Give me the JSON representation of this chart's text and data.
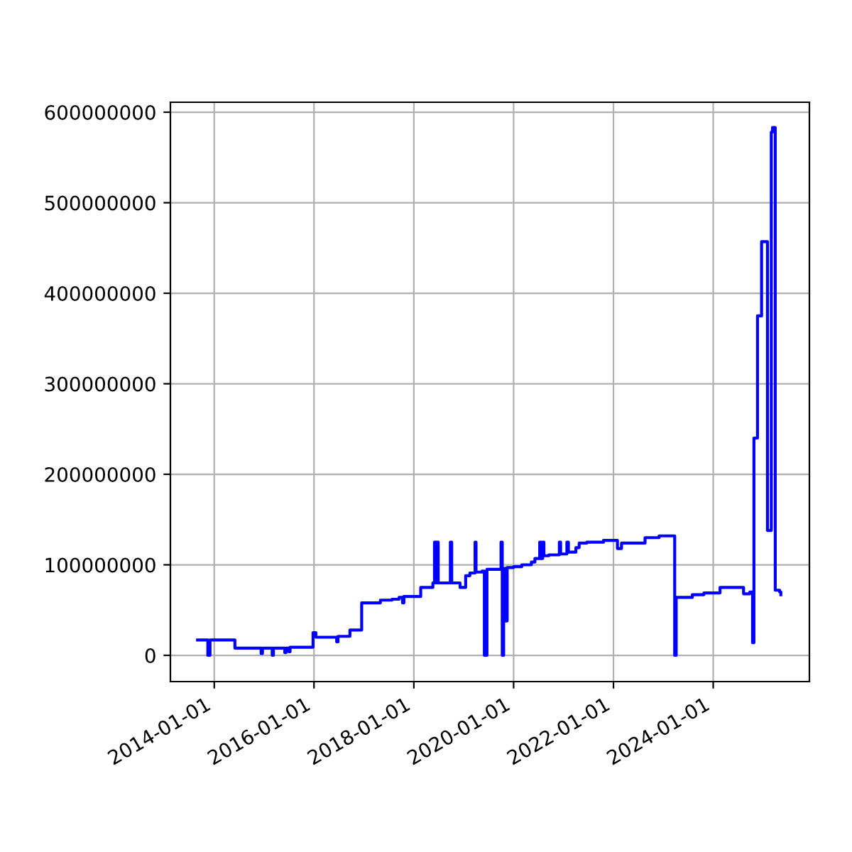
{
  "chart_data": {
    "type": "step",
    "color": "#0000ff",
    "grid": true,
    "x": [
      "2013-09-01",
      "2013-11-15",
      "2013-12-01",
      "2014-06-01",
      "2014-12-10",
      "2014-12-20",
      "2015-03-01",
      "2015-03-10",
      "2015-06-01",
      "2015-06-10",
      "2015-07-01",
      "2015-07-10",
      "2015-12-25",
      "2016-01-15",
      "2016-06-15",
      "2016-06-25",
      "2016-09-20",
      "2016-12-15",
      "2017-05-01",
      "2017-07-25",
      "2017-09-15",
      "2017-10-10",
      "2017-10-20",
      "2018-02-20",
      "2018-05-20",
      "2018-06-01",
      "2018-06-05",
      "2018-06-10",
      "2018-06-15",
      "2018-06-20",
      "2018-06-28",
      "2018-09-25",
      "2018-10-05",
      "2018-12-05",
      "2019-01-15",
      "2019-02-15",
      "2019-03-25",
      "2019-04-01",
      "2019-05-15",
      "2019-06-01",
      "2019-06-20",
      "2019-10-01",
      "2019-10-10",
      "2019-10-20",
      "2019-11-05",
      "2019-11-15",
      "2020-01-01",
      "2020-03-01",
      "2020-05-10",
      "2020-06-05",
      "2020-07-10",
      "2020-07-20",
      "2020-08-01",
      "2020-08-10",
      "2020-09-15",
      "2020-12-01",
      "2020-12-10",
      "2021-01-25",
      "2021-02-05",
      "2021-04-01",
      "2021-04-25",
      "2021-06-20",
      "2021-10-20",
      "2022-01-30",
      "2022-03-01",
      "2022-08-20",
      "2022-12-01",
      "2023-03-25",
      "2023-04-05",
      "2023-08-01",
      "2023-10-25",
      "2024-02-20",
      "2024-08-10",
      "2024-09-25",
      "2024-10-15",
      "2024-10-25",
      "2024-11-20",
      "2024-12-20",
      "2025-02-01",
      "2025-03-01",
      "2025-03-10",
      "2025-03-30",
      "2025-05-01",
      "2025-05-10"
    ],
    "values": [
      17000000,
      0,
      17000000,
      8000000,
      2000000,
      8000000,
      0,
      8000000,
      3000000,
      8000000,
      4000000,
      9000000,
      25000000,
      20000000,
      15000000,
      21000000,
      28000000,
      58000000,
      61000000,
      62000000,
      64000000,
      58000000,
      65000000,
      75000000,
      80000000,
      125000000,
      80000000,
      125000000,
      80000000,
      125000000,
      80000000,
      125000000,
      80000000,
      75000000,
      88000000,
      91000000,
      125000000,
      92000000,
      93000000,
      0,
      95000000,
      125000000,
      0,
      96000000,
      38000000,
      97000000,
      98000000,
      100000000,
      103000000,
      107000000,
      125000000,
      107000000,
      125000000,
      110000000,
      111000000,
      125000000,
      112000000,
      125000000,
      114000000,
      119000000,
      124000000,
      125000000,
      127000000,
      118000000,
      124000000,
      130000000,
      132000000,
      0,
      64000000,
      67000000,
      69000000,
      75000000,
      68000000,
      70000000,
      14000000,
      240000000,
      375000000,
      457000000,
      138000000,
      578000000,
      583000000,
      72000000,
      70000000,
      67000000
    ],
    "xlim": [
      "2013-02-14",
      "2025-12-05"
    ],
    "xticks": [
      "2014-01-01",
      "2016-01-01",
      "2018-01-01",
      "2020-01-01",
      "2022-01-01",
      "2024-01-01"
    ],
    "ylim": [
      -29000000,
      611000000
    ],
    "yticks": [
      0,
      100000000,
      200000000,
      300000000,
      400000000,
      500000000,
      600000000
    ]
  }
}
